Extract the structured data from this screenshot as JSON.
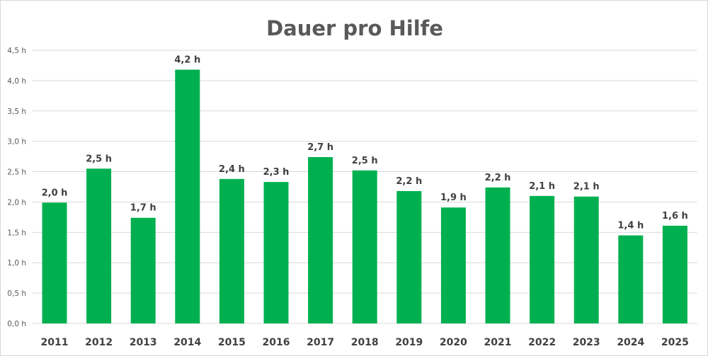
{
  "chart_data": {
    "type": "bar",
    "title": "Dauer pro Hilfe",
    "xlabel": "",
    "ylabel": "",
    "categories": [
      "2011",
      "2012",
      "2013",
      "2014",
      "2015",
      "2016",
      "2017",
      "2018",
      "2019",
      "2020",
      "2021",
      "2022",
      "2023",
      "2024",
      "2025"
    ],
    "values": [
      1.99,
      2.55,
      1.74,
      4.18,
      2.38,
      2.33,
      2.74,
      2.52,
      2.18,
      1.91,
      2.24,
      2.1,
      2.09,
      1.45,
      1.61
    ],
    "data_labels": [
      "2,0 h",
      "2,5 h",
      "1,7 h",
      "4,2 h",
      "2,4 h",
      "2,3 h",
      "2,7 h",
      "2,5 h",
      "2,2 h",
      "1,9 h",
      "2,2 h",
      "2,1 h",
      "2,1 h",
      "1,4 h",
      "1,6 h"
    ],
    "ylim": [
      0,
      4.5
    ],
    "yticks": [
      "0,0 h",
      "0,5 h",
      "1,0 h",
      "1,5 h",
      "2,0 h",
      "2,5 h",
      "3,0 h",
      "3,5 h",
      "4,0 h",
      "4,5 h"
    ],
    "ytick_values": [
      0,
      0.5,
      1,
      1.5,
      2,
      2.5,
      3,
      3.5,
      4,
      4.5
    ],
    "grid": true,
    "legend": "none",
    "bar_color": "#00b050",
    "grid_color": "#d9d9d9"
  }
}
